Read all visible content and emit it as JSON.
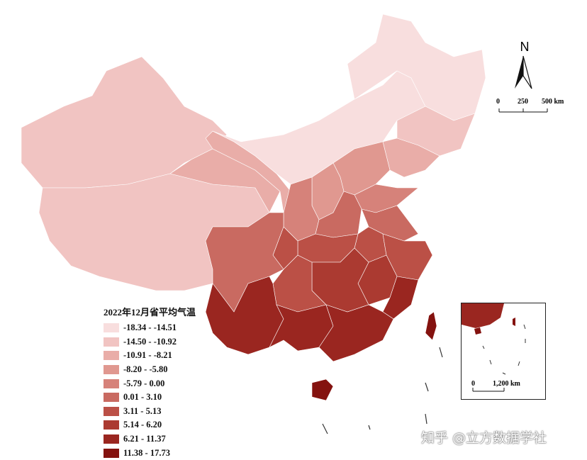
{
  "legend": {
    "title": "2022年12月省平均气温",
    "classes": [
      {
        "label": "-18.34 - -14.51",
        "color": "#f8dede"
      },
      {
        "label": "-14.50 - -10.92",
        "color": "#f1c4c2"
      },
      {
        "label": "-10.91 - -8.21",
        "color": "#e9ada8"
      },
      {
        "label": "-8.20 - -5.80",
        "color": "#e09890"
      },
      {
        "label": "-5.79 - 0.00",
        "color": "#d6827a"
      },
      {
        "label": "0.01 - 3.10",
        "color": "#c96a61"
      },
      {
        "label": "3.11 - 5.13",
        "color": "#bb5046"
      },
      {
        "label": "5.14 - 6.20",
        "color": "#ab3a31"
      },
      {
        "label": "6.21 - 11.37",
        "color": "#9a2620"
      },
      {
        "label": "11.38 - 17.73",
        "color": "#84120f"
      }
    ]
  },
  "north_arrow": {
    "label": "N"
  },
  "scale_bar": {
    "ticks": [
      "0",
      "250",
      "500 km"
    ]
  },
  "inset": {
    "scale_ticks": [
      "0",
      "1,200 km"
    ]
  },
  "watermark": "知乎 @立方数据学社"
}
